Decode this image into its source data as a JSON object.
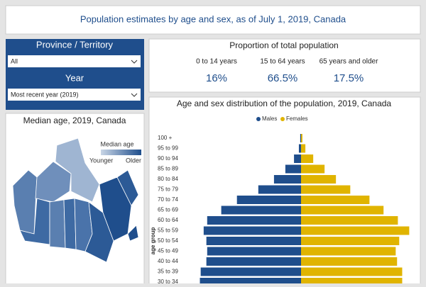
{
  "header": {
    "title": "Population estimates by age and sex, as of July 1, 2019, Canada"
  },
  "filters": [
    {
      "label": "Province / Territory",
      "value": "All"
    },
    {
      "label": "Year",
      "value": "Most recent year (2019)"
    }
  ],
  "map": {
    "title": "Median age, 2019, Canada",
    "legend_title": "Median age",
    "legend_low": "Younger",
    "legend_high": "Older"
  },
  "kpis": {
    "title": "Proportion of total population",
    "items": [
      {
        "label": "0 to 14 years",
        "value": "16%"
      },
      {
        "label": "15 to 64 years",
        "value": "66.5%"
      },
      {
        "label": "65 years and older",
        "value": "17.5%"
      }
    ]
  },
  "chart_data": {
    "type": "pyramid",
    "title": "Age and sex distribution of the population, 2019, Canada",
    "y_label": "age group",
    "categories": [
      "100 +",
      "95 to 99",
      "90 to 94",
      "85 to 89",
      "80 to 84",
      "75 to 79",
      "70 to 74",
      "65 to 69",
      "60 to 64",
      "55 to 59",
      "50 to 54",
      "45 to 49",
      "40 to 44",
      "35 to 39",
      "30 to 34"
    ],
    "series": [
      {
        "name": "Males",
        "color": "#1f4e8c",
        "values": [
          0.03,
          0.08,
          0.26,
          0.58,
          1.0,
          1.58,
          2.37,
          2.95,
          3.47,
          3.6,
          3.5,
          3.47,
          3.5,
          3.71,
          3.74
        ]
      },
      {
        "name": "Females",
        "color": "#e0b400",
        "values": [
          0.05,
          0.16,
          0.45,
          0.87,
          1.29,
          1.82,
          2.53,
          3.05,
          3.58,
          4.0,
          3.63,
          3.5,
          3.55,
          3.74,
          3.74
        ]
      }
    ],
    "xlim": [
      0,
      4.2
    ]
  }
}
